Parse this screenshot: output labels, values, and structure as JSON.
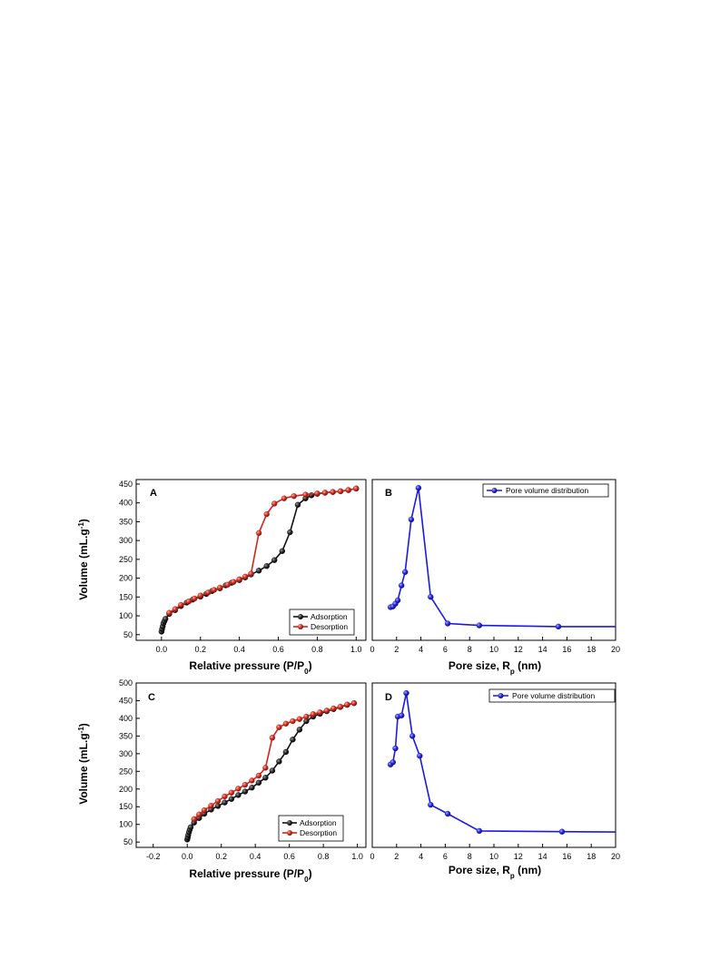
{
  "colors": {
    "adsorption": "#111111",
    "desorption": "#c8281e",
    "pore": "#1a1ae6",
    "axis": "#000000"
  },
  "chart_data": [
    {
      "panel": "A",
      "type": "line",
      "xlabel": "Relative pressure (P/P0)",
      "ylabel": "Volume (mL.g-1)",
      "xlim": [
        -0.13,
        1.05
      ],
      "ylim": [
        35,
        462
      ],
      "xticks": [
        0.0,
        0.2,
        0.4,
        0.6,
        0.8,
        1.0
      ],
      "xtick_labels": [
        "0.0",
        "0.2",
        "0.4",
        "0.6",
        "0.8",
        "1.0"
      ],
      "yticks": [
        50,
        100,
        150,
        200,
        250,
        300,
        350,
        400,
        450
      ],
      "ytick_labels": [
        "50",
        "100",
        "150",
        "200",
        "250",
        "300",
        "350",
        "400",
        "450"
      ],
      "legend_position": "bottom-right",
      "grid": false,
      "series": [
        {
          "name": "Adsorption",
          "x": [
            0.0,
            0.003,
            0.006,
            0.01,
            0.015,
            0.02,
            0.04,
            0.07,
            0.1,
            0.13,
            0.16,
            0.2,
            0.23,
            0.26,
            0.3,
            0.33,
            0.36,
            0.4,
            0.43,
            0.46,
            0.5,
            0.54,
            0.58,
            0.62,
            0.66,
            0.7,
            0.74,
            0.77,
            0.8,
            0.84,
            0.88,
            0.92,
            0.96,
            1.0
          ],
          "y": [
            58,
            65,
            72,
            80,
            86,
            92,
            105,
            115,
            126,
            135,
            143,
            151,
            158,
            166,
            173,
            181,
            188,
            195,
            202,
            210,
            220,
            232,
            248,
            272,
            322,
            395,
            412,
            420,
            424,
            427,
            429,
            431,
            434,
            438
          ]
        },
        {
          "name": "Desorption",
          "x": [
            1.0,
            0.96,
            0.92,
            0.88,
            0.84,
            0.8,
            0.74,
            0.68,
            0.63,
            0.58,
            0.54,
            0.5,
            0.46,
            0.43,
            0.4,
            0.37,
            0.34,
            0.3,
            0.27,
            0.24,
            0.2,
            0.17,
            0.14,
            0.1,
            0.07,
            0.04
          ],
          "y": [
            438,
            434,
            431,
            429,
            427,
            425,
            422,
            418,
            412,
            398,
            370,
            320,
            212,
            204,
            197,
            190,
            183,
            175,
            169,
            162,
            154,
            146,
            138,
            129,
            118,
            108
          ]
        }
      ]
    },
    {
      "panel": "B",
      "type": "line",
      "xlabel": "Pore size, Rp (nm)",
      "ylabel": "",
      "xlim": [
        0,
        20
      ],
      "ylim": [
        40,
        462
      ],
      "xticks": [
        0,
        2,
        4,
        6,
        8,
        10,
        12,
        14,
        16,
        18,
        20
      ],
      "xtick_labels": [
        "0",
        "2",
        "4",
        "6",
        "8",
        "10",
        "12",
        "14",
        "16",
        "18",
        "20"
      ],
      "legend_position": "top-right",
      "grid": false,
      "series": [
        {
          "name": "Pore volume distribution",
          "x": [
            1.5,
            1.7,
            1.9,
            2.1,
            2.4,
            2.7,
            3.2,
            3.8,
            4.8,
            6.2,
            8.8,
            15.3,
            20.0
          ],
          "y": [
            127,
            129,
            136,
            145,
            184,
            219,
            357,
            440,
            154,
            84,
            79,
            76,
            76
          ]
        }
      ]
    },
    {
      "panel": "C",
      "type": "line",
      "xlabel": "Relative pressure (P/P0)",
      "ylabel": "Volume (mL.g-1)",
      "xlim": [
        -0.3,
        1.05
      ],
      "ylim": [
        35,
        500
      ],
      "xticks": [
        -0.2,
        0.0,
        0.2,
        0.4,
        0.6,
        0.8,
        1.0
      ],
      "xtick_labels": [
        "-0.2",
        "0.0",
        "0.2",
        "0.4",
        "0.6",
        "0.8",
        "1.0"
      ],
      "yticks": [
        50,
        100,
        150,
        200,
        250,
        300,
        350,
        400,
        450,
        500
      ],
      "ytick_labels": [
        "50",
        "100",
        "150",
        "200",
        "250",
        "300",
        "350",
        "400",
        "450",
        "500"
      ],
      "legend_position": "bottom-right",
      "grid": false,
      "series": [
        {
          "name": "Adsorption",
          "x": [
            0.0,
            0.003,
            0.006,
            0.01,
            0.015,
            0.02,
            0.04,
            0.07,
            0.1,
            0.14,
            0.18,
            0.22,
            0.26,
            0.3,
            0.34,
            0.38,
            0.42,
            0.46,
            0.5,
            0.54,
            0.58,
            0.62,
            0.66,
            0.7,
            0.74,
            0.78,
            0.82,
            0.86,
            0.9,
            0.94,
            0.98
          ],
          "y": [
            57,
            63,
            70,
            78,
            85,
            92,
            105,
            118,
            130,
            142,
            152,
            162,
            172,
            183,
            193,
            204,
            218,
            232,
            252,
            278,
            305,
            340,
            368,
            392,
            405,
            413,
            420,
            426,
            432,
            438,
            443
          ]
        },
        {
          "name": "Desorption",
          "x": [
            0.98,
            0.94,
            0.9,
            0.86,
            0.82,
            0.78,
            0.74,
            0.7,
            0.66,
            0.62,
            0.58,
            0.54,
            0.5,
            0.46,
            0.42,
            0.38,
            0.34,
            0.3,
            0.26,
            0.22,
            0.18,
            0.14,
            0.1,
            0.07,
            0.04
          ],
          "y": [
            443,
            439,
            433,
            428,
            422,
            417,
            412,
            405,
            398,
            392,
            385,
            375,
            345,
            260,
            238,
            224,
            212,
            201,
            190,
            179,
            166,
            153,
            140,
            128,
            115
          ]
        }
      ]
    },
    {
      "panel": "D",
      "type": "line",
      "xlabel": "Pore size, Rp (nm)",
      "ylabel": "",
      "xlim": [
        0,
        20
      ],
      "ylim": [
        30,
        470
      ],
      "xticks": [
        0,
        2,
        4,
        6,
        8,
        10,
        12,
        14,
        16,
        18,
        20
      ],
      "xtick_labels": [
        "0",
        "2",
        "4",
        "6",
        "8",
        "10",
        "12",
        "14",
        "16",
        "18",
        "20"
      ],
      "legend_position": "top-right",
      "grid": false,
      "series": [
        {
          "name": "Pore volume distribution",
          "x": [
            1.5,
            1.7,
            1.9,
            2.1,
            2.4,
            2.8,
            3.3,
            3.9,
            4.8,
            6.2,
            8.8,
            15.6,
            20.0
          ],
          "y": [
            252,
            258,
            295,
            380,
            383,
            443,
            328,
            275,
            144,
            120,
            74,
            72,
            71
          ]
        }
      ]
    }
  ]
}
